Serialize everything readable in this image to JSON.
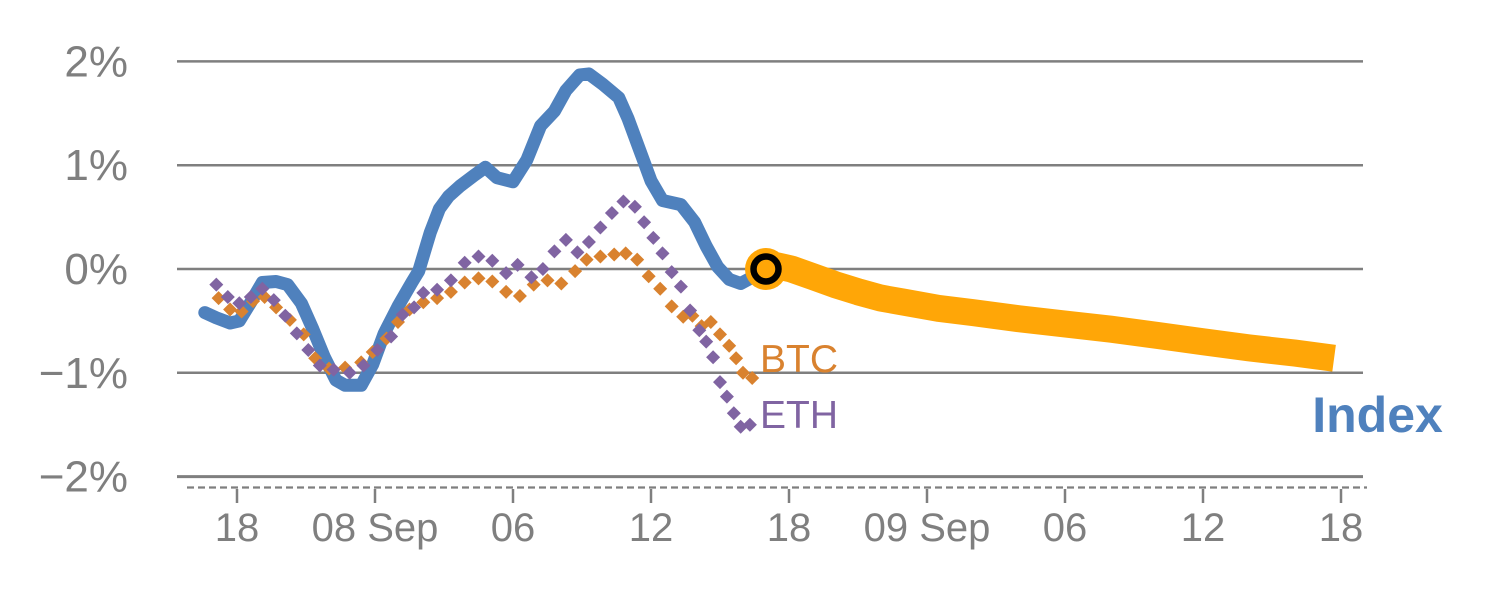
{
  "chart_data": {
    "type": "line",
    "title": "",
    "unit": "%",
    "grid": "horizontal",
    "y_axis": {
      "range": [
        -2,
        2
      ],
      "ticks": [
        {
          "label": "2%",
          "value": 2
        },
        {
          "label": "1%",
          "value": 1
        },
        {
          "label": "0%",
          "value": 0
        },
        {
          "label": "−1%",
          "value": -1
        },
        {
          "label": "−2%",
          "value": -2
        }
      ]
    },
    "x_axis": {
      "unit": "hours-from-first-tick",
      "ticks": [
        {
          "label": "18",
          "hour": 0
        },
        {
          "label": "08 Sep",
          "hour": 6
        },
        {
          "label": "06",
          "hour": 12
        },
        {
          "label": "12",
          "hour": 18
        },
        {
          "label": "18",
          "hour": 24
        },
        {
          "label": "09 Sep",
          "hour": 30
        },
        {
          "label": "06",
          "hour": 36
        },
        {
          "label": "12",
          "hour": 42
        },
        {
          "label": "18",
          "hour": 48
        }
      ]
    },
    "series": [
      {
        "id": "index_history",
        "label": "Index",
        "color": "#4F81BD",
        "style": "solid-line",
        "stroke_width": 13,
        "points": [
          [
            -1.4,
            -0.42
          ],
          [
            -0.9,
            -0.47
          ],
          [
            -0.3,
            -0.52
          ],
          [
            0.1,
            -0.5
          ],
          [
            0.6,
            -0.32
          ],
          [
            1.1,
            -0.13
          ],
          [
            1.7,
            -0.12
          ],
          [
            2.2,
            -0.15
          ],
          [
            2.8,
            -0.33
          ],
          [
            3.3,
            -0.58
          ],
          [
            3.8,
            -0.85
          ],
          [
            4.3,
            -1.07
          ],
          [
            4.7,
            -1.12
          ],
          [
            5.4,
            -1.12
          ],
          [
            5.9,
            -0.92
          ],
          [
            6.4,
            -0.62
          ],
          [
            7.0,
            -0.36
          ],
          [
            7.6,
            -0.13
          ],
          [
            7.9,
            -0.02
          ],
          [
            8.4,
            0.35
          ],
          [
            8.8,
            0.58
          ],
          [
            9.2,
            0.7
          ],
          [
            9.7,
            0.8
          ],
          [
            10.3,
            0.9
          ],
          [
            10.8,
            0.98
          ],
          [
            11.3,
            0.88
          ],
          [
            12.0,
            0.84
          ],
          [
            12.6,
            1.05
          ],
          [
            13.2,
            1.38
          ],
          [
            13.8,
            1.52
          ],
          [
            14.3,
            1.72
          ],
          [
            14.9,
            1.87
          ],
          [
            15.3,
            1.88
          ],
          [
            15.9,
            1.78
          ],
          [
            16.6,
            1.65
          ],
          [
            17.0,
            1.45
          ],
          [
            17.5,
            1.15
          ],
          [
            18.0,
            0.85
          ],
          [
            18.5,
            0.66
          ],
          [
            19.3,
            0.62
          ],
          [
            19.9,
            0.45
          ],
          [
            20.4,
            0.22
          ],
          [
            20.9,
            0.02
          ],
          [
            21.4,
            -0.1
          ],
          [
            21.9,
            -0.14
          ],
          [
            22.4,
            -0.08
          ],
          [
            23.0,
            0.0
          ]
        ]
      },
      {
        "id": "btc",
        "label": "BTC",
        "color": "#D9822F",
        "style": "diamond-markers",
        "marker_half_diagonal": 7,
        "points": [
          [
            -0.8,
            -0.28
          ],
          [
            -0.3,
            -0.39
          ],
          [
            0.2,
            -0.41
          ],
          [
            0.7,
            -0.31
          ],
          [
            1.2,
            -0.27
          ],
          [
            1.7,
            -0.37
          ],
          [
            2.3,
            -0.49
          ],
          [
            2.9,
            -0.63
          ],
          [
            3.4,
            -0.86
          ],
          [
            4.0,
            -0.96
          ],
          [
            4.7,
            -0.95
          ],
          [
            5.4,
            -0.9
          ],
          [
            5.9,
            -0.8
          ],
          [
            6.5,
            -0.67
          ],
          [
            7.0,
            -0.51
          ],
          [
            7.5,
            -0.39
          ],
          [
            8.1,
            -0.32
          ],
          [
            8.7,
            -0.28
          ],
          [
            9.3,
            -0.22
          ],
          [
            9.9,
            -0.13
          ],
          [
            10.5,
            -0.09
          ],
          [
            11.1,
            -0.12
          ],
          [
            11.7,
            -0.22
          ],
          [
            12.3,
            -0.26
          ],
          [
            12.9,
            -0.15
          ],
          [
            13.5,
            -0.11
          ],
          [
            14.1,
            -0.14
          ],
          [
            14.7,
            -0.02
          ],
          [
            15.2,
            0.09
          ],
          [
            15.8,
            0.12
          ],
          [
            16.4,
            0.14
          ],
          [
            16.9,
            0.15
          ],
          [
            17.4,
            0.09
          ],
          [
            17.9,
            -0.07
          ],
          [
            18.4,
            -0.19
          ],
          [
            18.9,
            -0.36
          ],
          [
            19.4,
            -0.46
          ],
          [
            19.8,
            -0.45
          ],
          [
            20.2,
            -0.55
          ],
          [
            20.6,
            -0.51
          ],
          [
            21.0,
            -0.63
          ],
          [
            21.4,
            -0.74
          ],
          [
            21.7,
            -0.86
          ],
          [
            22.0,
            -1.0
          ],
          [
            22.4,
            -1.05
          ]
        ]
      },
      {
        "id": "eth",
        "label": "ETH",
        "color": "#8064A2",
        "style": "diamond-markers",
        "marker_half_diagonal": 7,
        "points": [
          [
            -0.9,
            -0.15
          ],
          [
            -0.4,
            -0.27
          ],
          [
            0.1,
            -0.33
          ],
          [
            0.6,
            -0.27
          ],
          [
            1.1,
            -0.19
          ],
          [
            1.6,
            -0.3
          ],
          [
            2.1,
            -0.45
          ],
          [
            2.6,
            -0.62
          ],
          [
            3.1,
            -0.78
          ],
          [
            3.6,
            -0.93
          ],
          [
            4.2,
            -0.97
          ],
          [
            4.9,
            -1.0
          ],
          [
            5.5,
            -0.93
          ],
          [
            6.1,
            -0.78
          ],
          [
            6.7,
            -0.65
          ],
          [
            7.2,
            -0.44
          ],
          [
            7.7,
            -0.37
          ],
          [
            8.1,
            -0.23
          ],
          [
            8.7,
            -0.2
          ],
          [
            9.3,
            -0.11
          ],
          [
            9.9,
            0.06
          ],
          [
            10.5,
            0.12
          ],
          [
            11.1,
            0.08
          ],
          [
            11.7,
            -0.04
          ],
          [
            12.2,
            0.04
          ],
          [
            12.8,
            -0.08
          ],
          [
            13.3,
            0.0
          ],
          [
            13.8,
            0.17
          ],
          [
            14.3,
            0.28
          ],
          [
            14.8,
            0.16
          ],
          [
            15.3,
            0.26
          ],
          [
            15.8,
            0.4
          ],
          [
            16.3,
            0.54
          ],
          [
            16.8,
            0.65
          ],
          [
            17.3,
            0.6
          ],
          [
            17.7,
            0.45
          ],
          [
            18.1,
            0.3
          ],
          [
            18.5,
            0.15
          ],
          [
            18.9,
            -0.03
          ],
          [
            19.3,
            -0.17
          ],
          [
            19.7,
            -0.4
          ],
          [
            20.1,
            -0.59
          ],
          [
            20.4,
            -0.7
          ],
          [
            20.7,
            -0.85
          ],
          [
            21.0,
            -1.09
          ],
          [
            21.3,
            -1.23
          ],
          [
            21.6,
            -1.39
          ],
          [
            21.9,
            -1.52
          ],
          [
            22.3,
            -1.5
          ]
        ]
      },
      {
        "id": "index_forecast",
        "label": "Index",
        "color": "#FFA607",
        "style": "solid-line",
        "stroke_width": 27,
        "points": [
          [
            23.0,
            0.0
          ],
          [
            23.5,
            0.03
          ],
          [
            24.1,
            0.0
          ],
          [
            25.0,
            -0.07
          ],
          [
            26.0,
            -0.15
          ],
          [
            27.0,
            -0.22
          ],
          [
            28.0,
            -0.28
          ],
          [
            29.0,
            -0.32
          ],
          [
            30.5,
            -0.38
          ],
          [
            32.0,
            -0.42
          ],
          [
            34.0,
            -0.48
          ],
          [
            36.0,
            -0.53
          ],
          [
            38.0,
            -0.58
          ],
          [
            40.0,
            -0.64
          ],
          [
            42.0,
            -0.7
          ],
          [
            44.0,
            -0.76
          ],
          [
            46.0,
            -0.81
          ],
          [
            47.7,
            -0.86
          ]
        ]
      }
    ],
    "now_marker": {
      "hour": 23.0,
      "value": 0.0,
      "outer_color": "#FFA607",
      "ring_color": "#000000",
      "outer_radius": 21,
      "ring_radius": 12.5,
      "ring_stroke": 6.5
    },
    "annotations": [
      {
        "text": "BTC",
        "hour": 22.74,
        "value": -0.99,
        "color": "#D9822F",
        "size": 39,
        "weight": 400
      },
      {
        "text": "ETH",
        "hour": 22.74,
        "value": -1.53,
        "color": "#8064A2",
        "size": 39,
        "weight": 400
      },
      {
        "text": "Index",
        "hour": 46.75,
        "value": -1.57,
        "color": "#4F81BD",
        "size": 50,
        "weight": 700
      }
    ],
    "axis_color": "#7F7F7F",
    "label_color": "#7F7F7F"
  }
}
